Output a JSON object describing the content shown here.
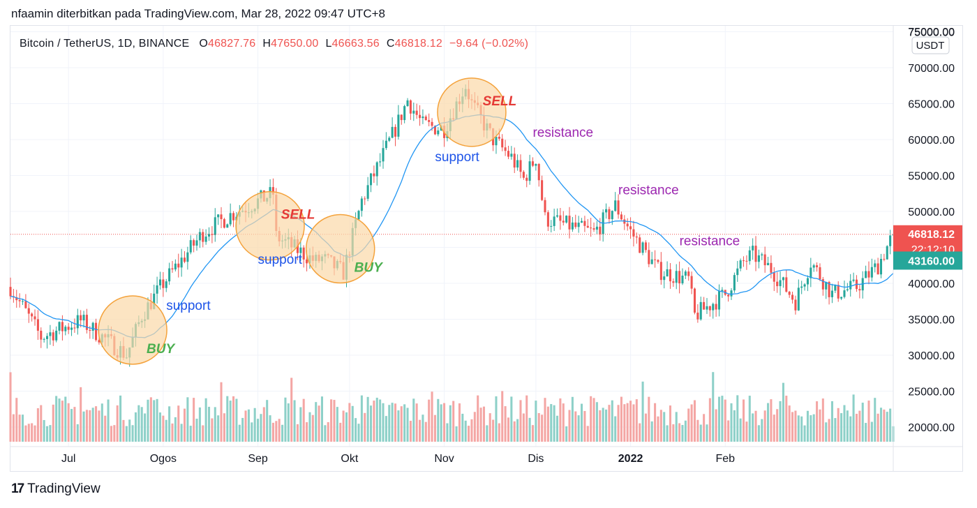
{
  "header": {
    "byline": "nfaamin diterbitkan pada TradingView.com, Mar 28, 2022 09:47 UTC+8"
  },
  "legend": {
    "symbol": "Bitcoin / TetherUS, 1D, BINANCE",
    "open_label": "O",
    "open": "46827.76",
    "high_label": "H",
    "high": "47650.00",
    "low_label": "L",
    "low": "46663.56",
    "close_label": "C",
    "close": "46818.12",
    "change": "−9.64 (−0.02%)"
  },
  "price_axis": {
    "currency": "USDT",
    "current_price": "46818.12",
    "countdown": "22:12:10",
    "ma_price": "43160.00"
  },
  "footer": {
    "brand_mark": "17",
    "brand": "TradingView"
  },
  "colors": {
    "up": "#26a69a",
    "down": "#ef5350",
    "up_volume": "#8dd0c8",
    "down_volume": "#f4a6a4",
    "ma": "#2196f3",
    "buy": "#4caf50",
    "sell": "#e53935",
    "support": "#1e54e8",
    "resistance": "#9c27b0",
    "circle_fill": "#fbd9a8",
    "circle_stroke": "#f4a23b"
  },
  "chart_data": {
    "type": "candlestick",
    "title": "Bitcoin / TetherUS, 1D, BINANCE",
    "y_ticks": [
      20000,
      25000,
      30000,
      35000,
      40000,
      45000,
      50000,
      55000,
      60000,
      65000,
      70000,
      75000
    ],
    "y_tick_labels": [
      "20000.00",
      "25000.00",
      "30000.00",
      "35000.00",
      "40000.00",
      "45000.00",
      "50000.00",
      "55000.00",
      "60000.00",
      "65000.00",
      "70000.00",
      "75000.00"
    ],
    "x_labels": [
      "Jul",
      "Ogos",
      "Sep",
      "Okt",
      "Nov",
      "Dis",
      "2022",
      "Feb"
    ],
    "x_label_bold": [
      false,
      false,
      false,
      false,
      false,
      false,
      true,
      false
    ],
    "x_label_dates": [
      "2021-07-01",
      "2021-08-01",
      "2021-09-01",
      "2021-10-01",
      "2021-11-01",
      "2021-12-01",
      "2022-01-01",
      "2022-02-01"
    ],
    "x_range": [
      "2021-06-12",
      "2022-03-28"
    ],
    "ylim": [
      18000,
      75500
    ],
    "price_keyframes": [
      [
        "2021-06-12",
        39500
      ],
      [
        "2021-06-22",
        32500
      ],
      [
        "2021-07-05",
        34800
      ],
      [
        "2021-07-20",
        30000
      ],
      [
        "2021-07-25",
        35500
      ],
      [
        "2021-08-01",
        40000
      ],
      [
        "2021-08-14",
        47000
      ],
      [
        "2021-08-23",
        49500
      ],
      [
        "2021-09-06",
        52500
      ],
      [
        "2021-09-07",
        46500
      ],
      [
        "2021-09-20",
        43000
      ],
      [
        "2021-09-22",
        43500
      ],
      [
        "2021-09-29",
        41500
      ],
      [
        "2021-10-05",
        51500
      ],
      [
        "2021-10-16",
        61500
      ],
      [
        "2021-10-20",
        65500
      ],
      [
        "2021-10-25",
        62000
      ],
      [
        "2021-11-01",
        61500
      ],
      [
        "2021-11-08",
        67500
      ],
      [
        "2021-11-10",
        65000
      ],
      [
        "2021-11-17",
        60000
      ],
      [
        "2021-11-23",
        57500
      ],
      [
        "2021-11-27",
        54500
      ],
      [
        "2021-12-01",
        57500
      ],
      [
        "2021-12-04",
        49000
      ],
      [
        "2021-12-20",
        47000
      ],
      [
        "2021-12-27",
        50800
      ],
      [
        "2022-01-01",
        47200
      ],
      [
        "2022-01-10",
        41800
      ],
      [
        "2022-01-20",
        40500
      ],
      [
        "2022-01-22",
        35500
      ],
      [
        "2022-02-01",
        38500
      ],
      [
        "2022-02-07",
        43000
      ],
      [
        "2022-02-10",
        44000
      ],
      [
        "2022-02-16",
        42000
      ],
      [
        "2022-02-24",
        37500
      ],
      [
        "2022-03-01",
        43000
      ],
      [
        "2022-03-08",
        38500
      ],
      [
        "2022-03-16",
        39500
      ],
      [
        "2022-03-23",
        42500
      ],
      [
        "2022-03-28",
        46818
      ]
    ],
    "volume_note": "volume histogram in lower pane, not scaled to price axis",
    "annotations": [
      {
        "type": "circle",
        "date": "2021-07-22",
        "price": 33500,
        "label": "BUY"
      },
      {
        "type": "circle",
        "date": "2021-09-05",
        "price": 48000,
        "label": "SELL"
      },
      {
        "type": "circle",
        "date": "2021-09-28",
        "price": 44800,
        "label": "BUY"
      },
      {
        "type": "circle",
        "date": "2021-11-10",
        "price": 63800,
        "label": "SELL"
      },
      {
        "type": "text",
        "label": "support",
        "date": "2021-08-02",
        "price": 36300
      },
      {
        "type": "text",
        "label": "support",
        "date": "2021-09-01",
        "price": 42700
      },
      {
        "type": "text",
        "label": "support",
        "date": "2021-10-29",
        "price": 57000
      },
      {
        "type": "text",
        "label": "resistance",
        "date": "2021-11-30",
        "price": 60400
      },
      {
        "type": "text",
        "label": "resistance",
        "date": "2021-12-28",
        "price": 52400
      },
      {
        "type": "text",
        "label": "resistance",
        "date": "2022-01-17",
        "price": 45300
      }
    ],
    "buy_label": "BUY",
    "sell_label": "SELL",
    "support_label": "support",
    "resistance_label": "resistance",
    "current_price": 46818.12,
    "ma_last": 43160.0,
    "grid": true,
    "legend": "top-left"
  }
}
